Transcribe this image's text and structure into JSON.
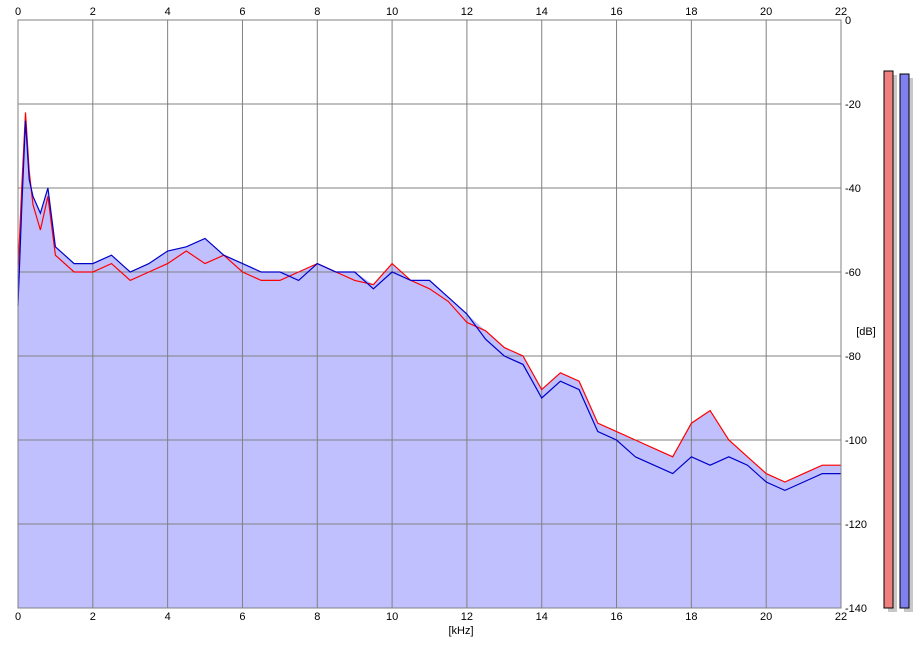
{
  "chart_data": {
    "type": "area",
    "xlabel": "[kHz]",
    "ylabel": "[dB]",
    "xlim": [
      0,
      22
    ],
    "ylim": [
      -140,
      0
    ],
    "x_ticks": [
      0,
      2,
      4,
      6,
      8,
      10,
      12,
      14,
      16,
      18,
      20,
      22
    ],
    "y_ticks": [
      0,
      -20,
      -40,
      -60,
      -80,
      -100,
      -120,
      -140
    ],
    "grid": true,
    "colors": {
      "fill": "#c0c0ff",
      "left_channel": "#ff0000",
      "right_channel": "#0000c8",
      "grid": "#808080",
      "meter_left": "#f08080",
      "meter_right": "#8080f0"
    },
    "series": [
      {
        "x": [
          0.0,
          0.1,
          0.2,
          0.3,
          0.4,
          0.6,
          0.8,
          1.0,
          1.5,
          2.0,
          2.5,
          3.0,
          3.5,
          4.0,
          4.5,
          5.0,
          5.5,
          6.0,
          6.5,
          7.0,
          7.5,
          8.0,
          8.5,
          9.0,
          9.5,
          10.0,
          10.5,
          11.0,
          11.5,
          12.0,
          12.5,
          13.0,
          13.5,
          14.0,
          14.5,
          15.0,
          15.5,
          16.0,
          16.5,
          17.0,
          17.5,
          18.0,
          18.5,
          19.0,
          19.5,
          20.0,
          20.5,
          21.0,
          21.5,
          22.0
        ],
        "values": [
          -60,
          -40,
          -22,
          -36,
          -44,
          -50,
          -42,
          -56,
          -60,
          -60,
          -58,
          -62,
          -60,
          -58,
          -55,
          -58,
          -56,
          -60,
          -62,
          -62,
          -60,
          -58,
          -60,
          -62,
          -63,
          -58,
          -62,
          -64,
          -67,
          -72,
          -74,
          -78,
          -80,
          -88,
          -84,
          -86,
          -96,
          -98,
          -100,
          -102,
          -104,
          -96,
          -93,
          -100,
          -104,
          -108,
          -110,
          -108,
          -106,
          -106
        ]
      },
      {
        "x": [
          0.0,
          0.1,
          0.2,
          0.3,
          0.4,
          0.6,
          0.8,
          1.0,
          1.5,
          2.0,
          2.5,
          3.0,
          3.5,
          4.0,
          4.5,
          5.0,
          5.5,
          6.0,
          6.5,
          7.0,
          7.5,
          8.0,
          8.5,
          9.0,
          9.5,
          10.0,
          10.5,
          11.0,
          11.5,
          12.0,
          12.5,
          13.0,
          13.5,
          14.0,
          14.5,
          15.0,
          15.5,
          16.0,
          16.5,
          17.0,
          17.5,
          18.0,
          18.5,
          19.0,
          19.5,
          20.0,
          20.5,
          21.0,
          21.5,
          22.0
        ],
        "values": [
          -68,
          -45,
          -24,
          -38,
          -42,
          -46,
          -40,
          -54,
          -58,
          -58,
          -56,
          -60,
          -58,
          -55,
          -54,
          -52,
          -56,
          -58,
          -60,
          -60,
          -62,
          -58,
          -60,
          -60,
          -64,
          -60,
          -62,
          -62,
          -66,
          -70,
          -76,
          -80,
          -82,
          -90,
          -86,
          -88,
          -98,
          -100,
          -104,
          -106,
          -108,
          -104,
          -106,
          -104,
          -106,
          -110,
          -112,
          -110,
          -108,
          -108
        ]
      }
    ]
  }
}
